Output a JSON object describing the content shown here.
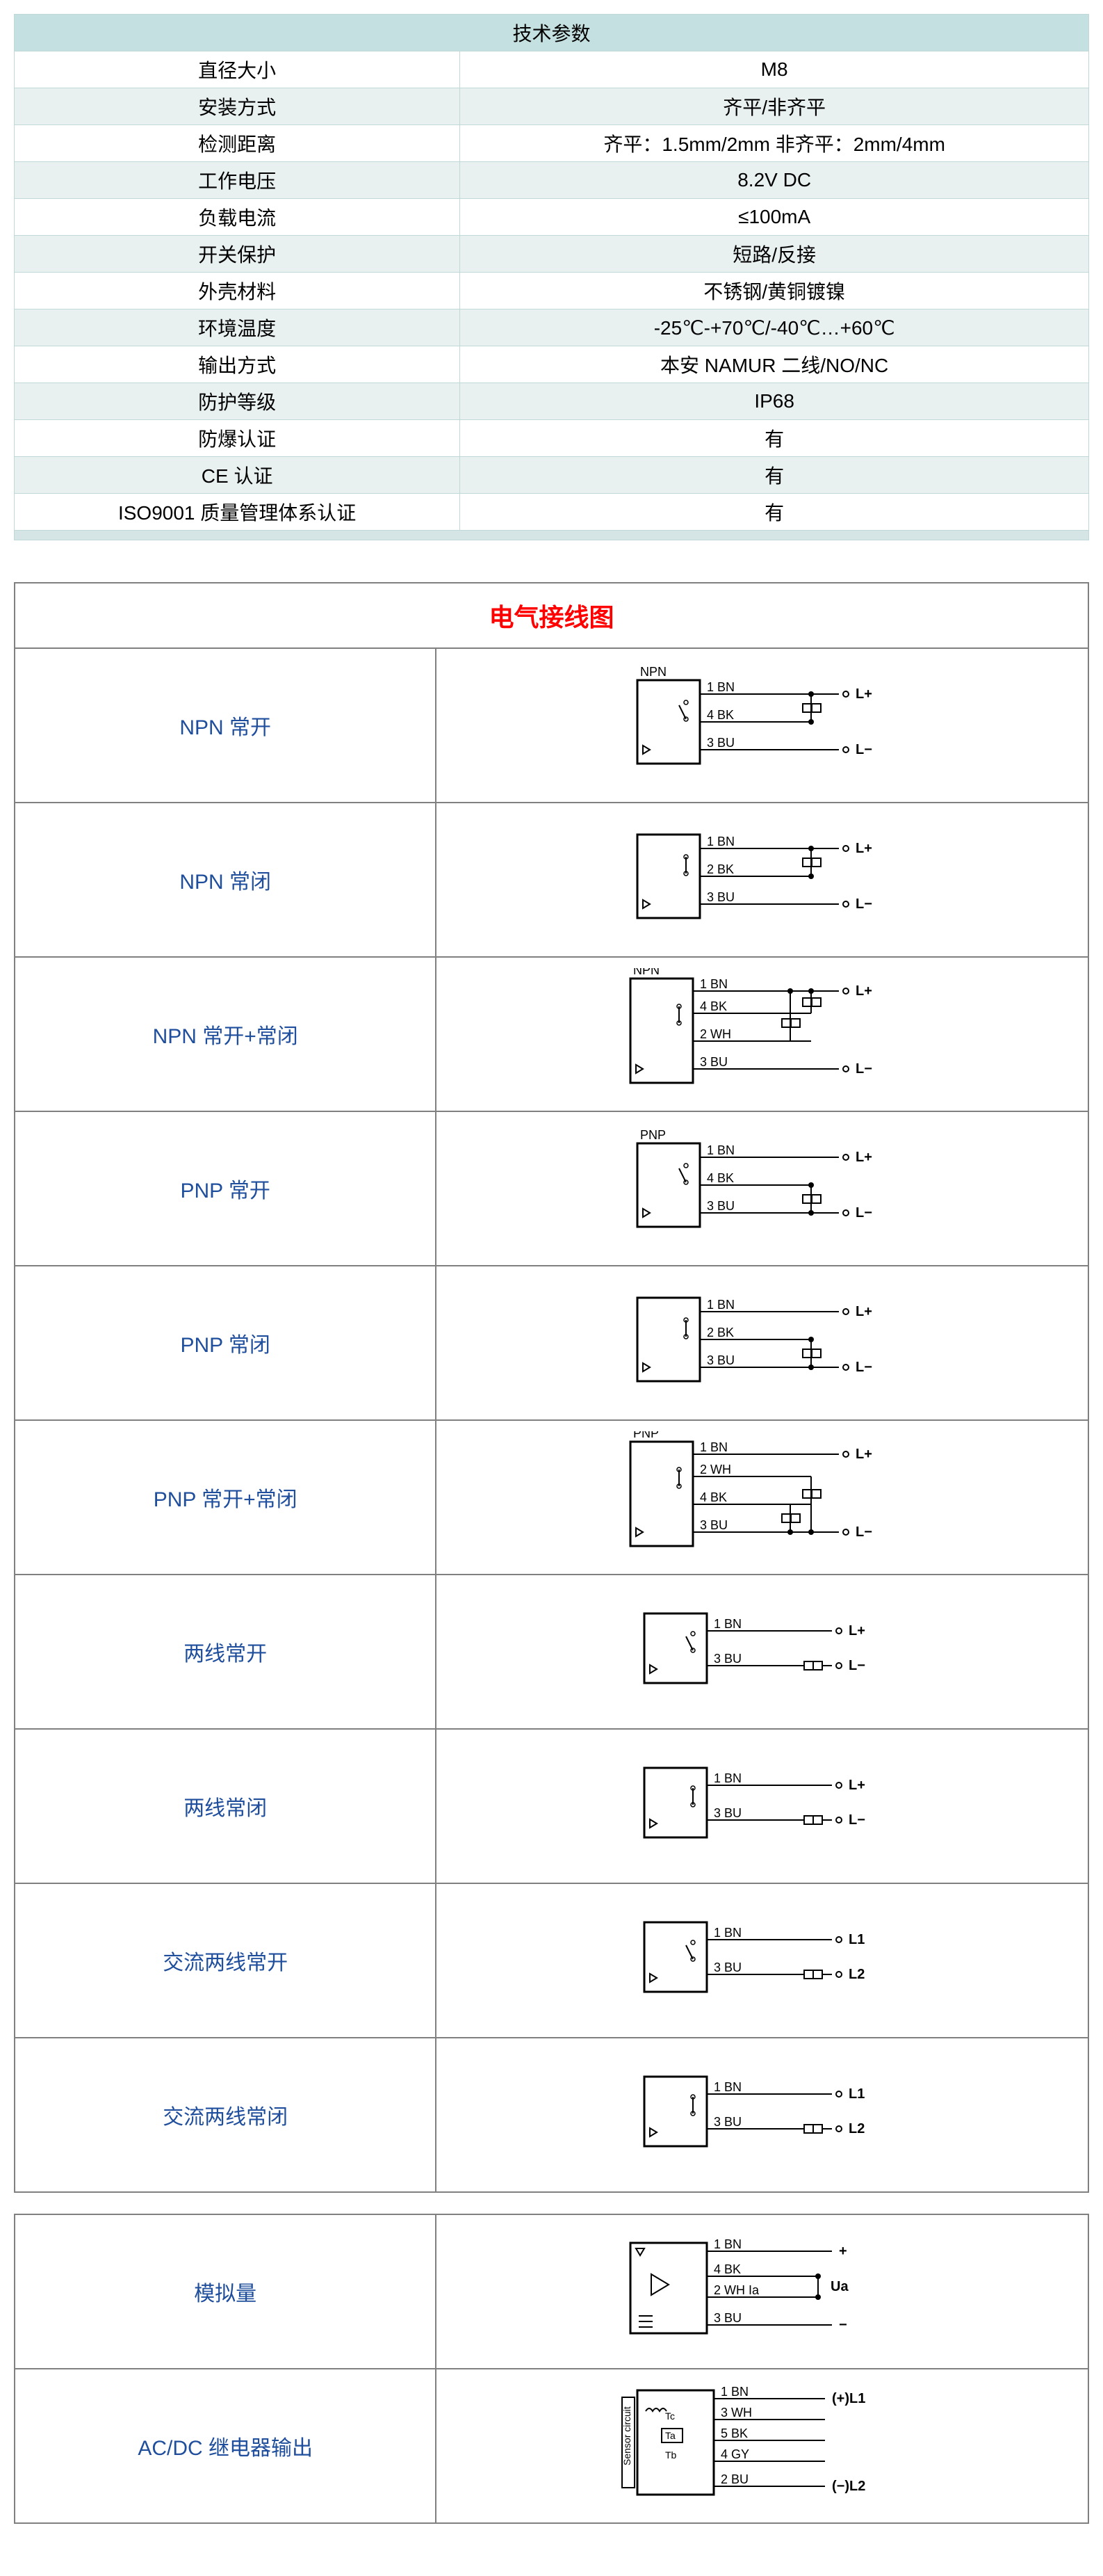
{
  "spec": {
    "title": "技术参数",
    "rows": [
      {
        "label": "直径大小",
        "value": "M8"
      },
      {
        "label": "安装方式",
        "value": "齐平/非齐平"
      },
      {
        "label": "检测距离",
        "value": "齐平：1.5mm/2mm  非齐平：2mm/4mm"
      },
      {
        "label": "工作电压",
        "value": "8.2V DC"
      },
      {
        "label": "负载电流",
        "value": "≤100mA"
      },
      {
        "label": "开关保护",
        "value": "短路/反接"
      },
      {
        "label": "外壳材料",
        "value": "不锈钢/黄铜镀镍"
      },
      {
        "label": "环境温度",
        "value": "-25℃-+70℃/-40℃…+60℃"
      },
      {
        "label": "输出方式",
        "value": "本安 NAMUR 二线/NO/NC"
      },
      {
        "label": "防护等级",
        "value": "IP68"
      },
      {
        "label": "防爆认证",
        "value": "有"
      },
      {
        "label": "CE 认证",
        "value": "有"
      },
      {
        "label": "ISO9001 质量管理体系认证",
        "value": "有"
      }
    ]
  },
  "wiring": {
    "title": "电气接线图",
    "rows": [
      {
        "label": "NPN 常开",
        "type": "npn-no"
      },
      {
        "label": "NPN 常闭",
        "type": "npn-nc"
      },
      {
        "label": "NPN  常开+常闭",
        "type": "npn-nonc"
      },
      {
        "label": "PNP 常开",
        "type": "pnp-no"
      },
      {
        "label": "PNP 常闭",
        "type": "pnp-nc"
      },
      {
        "label": "PNP 常开+常闭",
        "type": "pnp-nonc"
      },
      {
        "label": "两线常开",
        "type": "2wire-no"
      },
      {
        "label": "两线常闭",
        "type": "2wire-nc"
      },
      {
        "label": "交流两线常开",
        "type": "ac2-no"
      },
      {
        "label": "交流两线常闭",
        "type": "ac2-nc"
      }
    ],
    "rows2": [
      {
        "label": "模拟量",
        "type": "analog"
      },
      {
        "label": "AC/DC 继电器输出",
        "type": "relay"
      }
    ]
  },
  "colors": {
    "header_bg": "#c5e0e0",
    "alt_bg": "#e8f0f0",
    "border": "#c0d8d8",
    "label_color": "#1f4e9c",
    "title_color": "#ff0000",
    "grid_border": "#808080"
  },
  "wire_labels": {
    "bn": "BN",
    "bk": "BK",
    "bu": "BU",
    "wh": "WH",
    "gy": "GY",
    "lp": "L+",
    "lm": "L−",
    "l1": "L1",
    "l2": "L2",
    "ua": "Ua",
    "pl1": "(+)L1",
    "ml2": "(−)L2"
  }
}
